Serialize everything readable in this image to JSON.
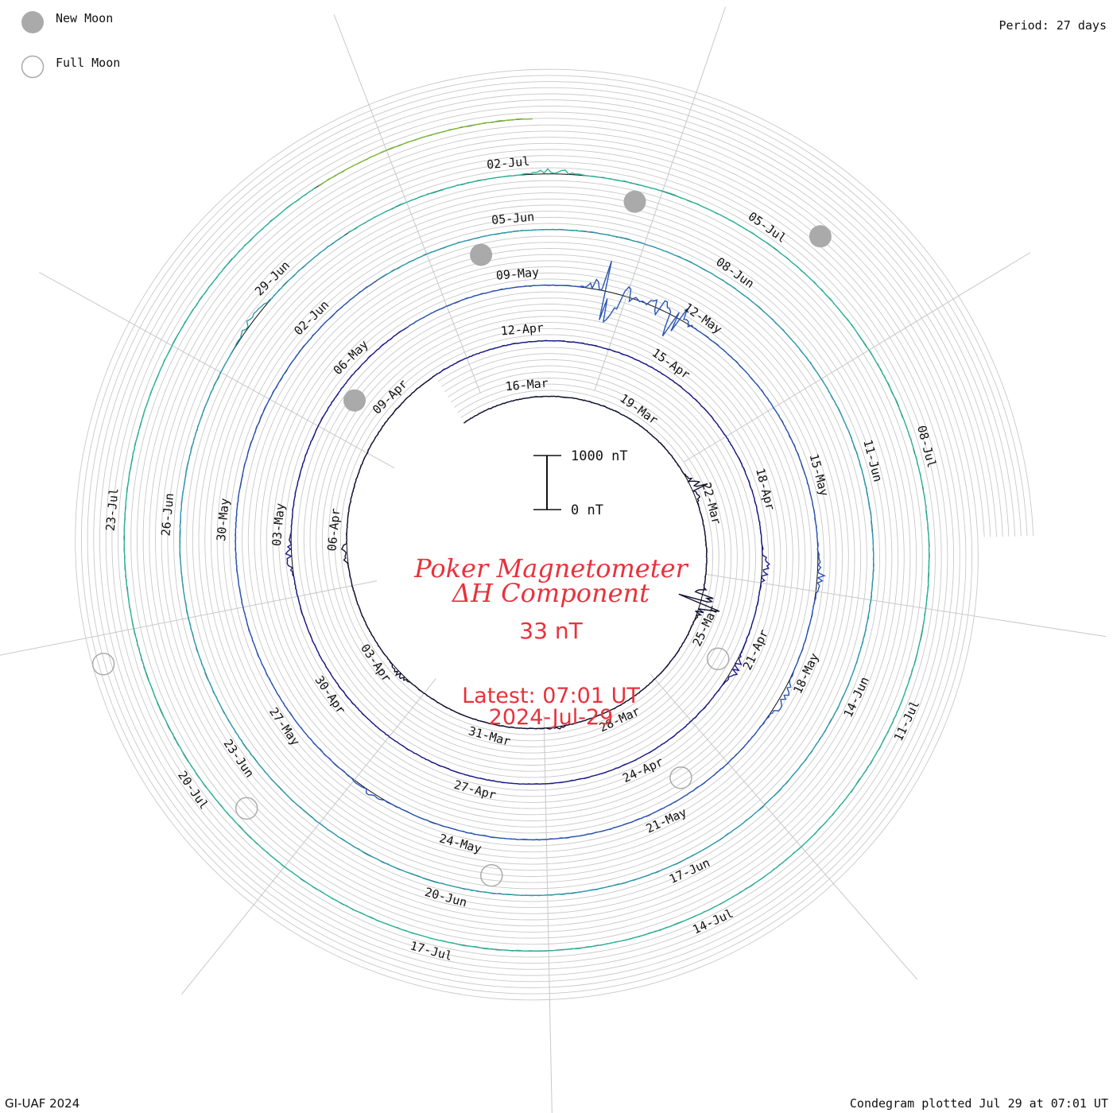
{
  "legend": {
    "new_moon_label": "New Moon",
    "full_moon_label": "Full Moon"
  },
  "header": {
    "period": "Period: 27 days"
  },
  "footer": {
    "left": "GI-UAF 2024",
    "right": "Condegram plotted Jul 29 at 07:01 UT"
  },
  "center": {
    "title_line1": "Poker Magnetometer",
    "title_line2": "ΔH Component",
    "value": "33 nT",
    "latest_line1": "Latest: 07:01 UT",
    "latest_line2": "2024-Jul-29"
  },
  "scale_bar": {
    "top_label": "1000 nT",
    "bottom_label": "0 nT"
  },
  "colors": {
    "title": "#e8323c",
    "moon_fill": "#aaaaaa",
    "grid": "#c8c8c8",
    "cycles": [
      "#111133",
      "#1b1b8a",
      "#2a55b5",
      "#2f9bb0",
      "#2db59a",
      "#7dbb3a",
      "#a8a81a",
      "#c87a18",
      "#b81e1e"
    ]
  },
  "chart_data": {
    "type": "polar-condegram",
    "period_days": 27,
    "start_date": "2024-03-14",
    "end_date": "2024-07-29",
    "scale_nT": 1000,
    "date_labels": [
      "16-Mar",
      "19-Mar",
      "22-Mar",
      "25-Mar",
      "28-Mar",
      "31-Mar",
      "03-Apr",
      "06-Apr",
      "09-Apr",
      "12-Apr",
      "15-Apr",
      "18-Apr",
      "21-Apr",
      "24-Apr",
      "27-Apr",
      "30-Apr",
      "03-May",
      "06-May",
      "09-May",
      "12-May",
      "15-May",
      "18-May",
      "21-May",
      "24-May",
      "27-May",
      "30-May",
      "02-Jun",
      "05-Jun",
      "08-Jun",
      "11-Jun",
      "14-Jun",
      "17-Jun",
      "20-Jun",
      "23-Jun",
      "26-Jun",
      "29-Jun",
      "02-Jul",
      "05-Jul",
      "08-Jul",
      "11-Jul",
      "14-Jul",
      "17-Jul",
      "20-Jul",
      "23-Jul"
    ],
    "new_moon_dates": [
      "2024-04-08",
      "2024-05-08",
      "2024-06-06",
      "2024-07-05"
    ],
    "full_moon_dates": [
      "2024-03-25",
      "2024-04-23",
      "2024-05-23",
      "2024-06-22",
      "2024-07-21"
    ],
    "disturbances": [
      {
        "date": "2024-03-21",
        "peak_nT": 900
      },
      {
        "date": "2024-03-24",
        "peak_nT": 1300
      },
      {
        "date": "2024-03-29",
        "peak_nT": 180
      },
      {
        "date": "2024-04-02",
        "peak_nT": 300
      },
      {
        "date": "2024-04-05",
        "peak_nT": 350
      },
      {
        "date": "2024-04-19",
        "peak_nT": 500
      },
      {
        "date": "2024-04-21",
        "peak_nT": 400
      },
      {
        "date": "2024-05-02",
        "peak_nT": 450
      },
      {
        "date": "2024-05-10",
        "peak_nT": 2600
      },
      {
        "date": "2024-05-11",
        "peak_nT": 1800
      },
      {
        "date": "2024-05-16",
        "peak_nT": 400
      },
      {
        "date": "2024-05-18",
        "peak_nT": 700
      },
      {
        "date": "2024-05-25",
        "peak_nT": 250
      },
      {
        "date": "2024-06-28",
        "peak_nT": 300
      },
      {
        "date": "2024-07-02",
        "peak_nT": 300
      }
    ]
  }
}
